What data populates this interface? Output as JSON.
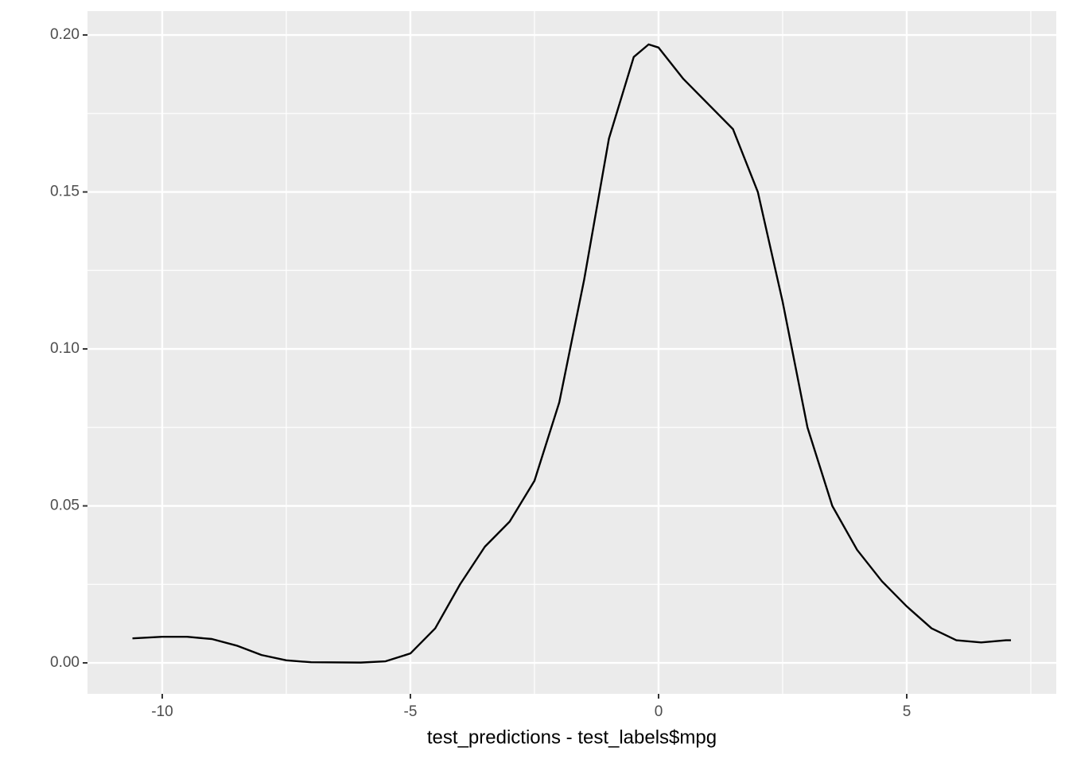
{
  "chart_data": {
    "type": "line",
    "x_label": "test_predictions - test_labels$mpg",
    "x": [
      -10.6,
      -10,
      -9.5,
      -9,
      -8.5,
      -8,
      -7.5,
      -7,
      -6,
      -5.5,
      -5,
      -4.5,
      -4,
      -3.5,
      -3,
      -2.5,
      -2,
      -1.5,
      -1,
      -0.5,
      -0.2,
      0,
      0.5,
      1,
      1.5,
      2,
      2.5,
      3,
      3.5,
      4,
      4.5,
      5,
      5.5,
      6,
      6.5,
      7,
      7.1
    ],
    "series": [
      {
        "color": "#000000",
        "values": [
          0.0078,
          0.0083,
          0.0083,
          0.0076,
          0.0055,
          0.0025,
          0.0008,
          0.0002,
          0.0001,
          0.0005,
          0.003,
          0.011,
          0.025,
          0.037,
          0.045,
          0.058,
          0.083,
          0.122,
          0.167,
          0.193,
          0.197,
          0.196,
          0.186,
          0.178,
          0.17,
          0.15,
          0.115,
          0.075,
          0.05,
          0.036,
          0.026,
          0.018,
          0.011,
          0.0072,
          0.0065,
          0.0072,
          0.0072
        ]
      }
    ],
    "xlim": [
      -11.506,
      8.013
    ],
    "ylim": [
      -0.00987,
      0.2076
    ],
    "xticks": [
      -10,
      -5,
      0,
      5
    ],
    "yticks": [
      {
        "value": 0,
        "label": "0.00"
      },
      {
        "value": 0.05,
        "label": "0.05"
      },
      {
        "value": 0.1,
        "label": "0.10"
      },
      {
        "value": 0.15,
        "label": "0.15"
      },
      {
        "value": 0.2,
        "label": "0.20"
      }
    ],
    "grid": true
  }
}
